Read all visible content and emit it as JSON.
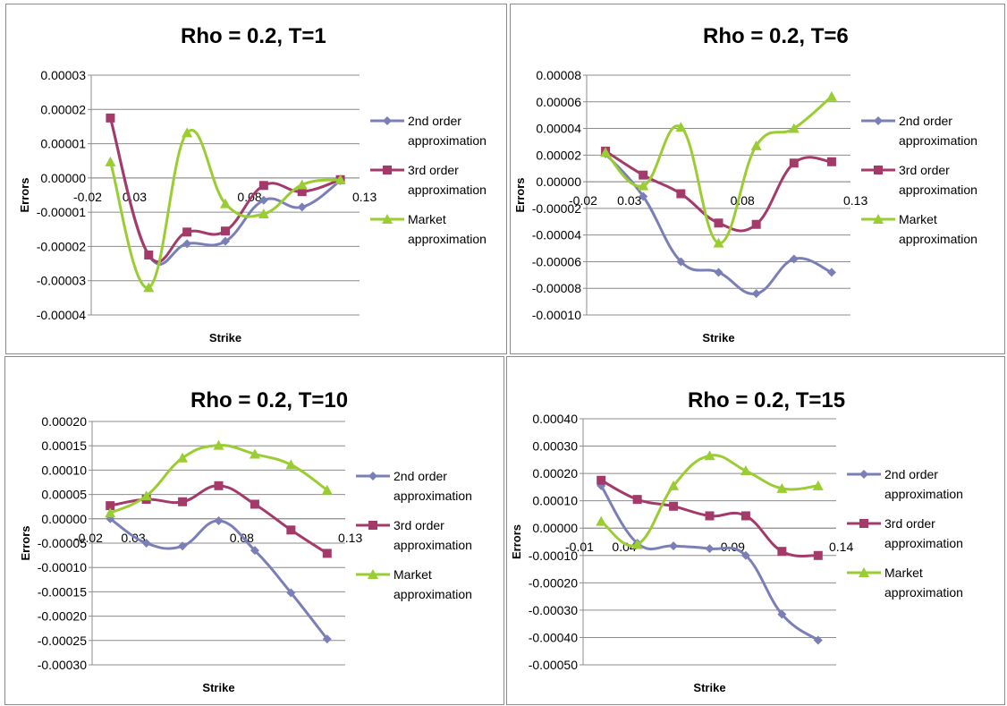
{
  "legend_labels": {
    "second": [
      "2nd order",
      "approximation"
    ],
    "third": [
      "3rd order",
      "approximation"
    ],
    "market": [
      "Market",
      "approximation"
    ]
  },
  "colors": {
    "second": "#7b7fb8",
    "third": "#a33a6a",
    "market": "#9acd32"
  },
  "chart_data": [
    {
      "type": "line",
      "title": "Rho = 0.2, T=1",
      "xlabel": "Strike",
      "ylabel": "Errors",
      "ylim": [
        -4e-05,
        3e-05
      ],
      "ytick_labels": [
        "0.00003",
        "0.00002",
        "0.00001",
        "0.00000",
        "-0.00001",
        "-0.00002",
        "-0.00003",
        "-0.00004"
      ],
      "x_category_labels": [
        "0.03",
        "0.08",
        "0.13"
      ],
      "x_origin_label": "-0.02",
      "legend_position": "right",
      "series": [
        {
          "name": "2nd order approximation",
          "values": [
            1.75e-05,
            -2.25e-05,
            -1.92e-05,
            -1.85e-05,
            -6.5e-06,
            -8.5e-06,
            -8e-07
          ]
        },
        {
          "name": "3rd order approximation",
          "values": [
            1.75e-05,
            -2.25e-05,
            -1.58e-05,
            -1.55e-05,
            -2.2e-06,
            -4e-06,
            -5e-07
          ]
        },
        {
          "name": "Market approximation",
          "values": [
            4.7e-06,
            -3.2e-05,
            1.32e-05,
            -7.5e-06,
            -1.05e-05,
            -2e-06,
            -5e-07
          ]
        }
      ]
    },
    {
      "type": "line",
      "title": "Rho = 0.2, T=6",
      "xlabel": "Strike",
      "ylabel": "Errors",
      "ylim": [
        -0.0001,
        8e-05
      ],
      "ytick_labels": [
        "0.00008",
        "0.00006",
        "0.00004",
        "0.00002",
        "0.00000",
        "-0.00002",
        "-0.00004",
        "-0.00006",
        "-0.00008",
        "-0.00010"
      ],
      "x_category_labels": [
        "0.03",
        "0.08",
        "0.13"
      ],
      "x_origin_label": "-0.02",
      "legend_position": "right",
      "series": [
        {
          "name": "2nd order approximation",
          "values": [
            2.1e-05,
            -1.1e-05,
            -6e-05,
            -6.8e-05,
            -8.4e-05,
            -5.8e-05,
            -6.8e-05
          ]
        },
        {
          "name": "3rd order approximation",
          "values": [
            2.3e-05,
            5e-06,
            -9e-06,
            -3.1e-05,
            -3.2e-05,
            1.4e-05,
            1.5e-05
          ]
        },
        {
          "name": "Market approximation",
          "values": [
            2.2e-05,
            -3e-06,
            4.1e-05,
            -4.6e-05,
            2.7e-05,
            4e-05,
            6.4e-05
          ]
        }
      ]
    },
    {
      "type": "line",
      "title": "Rho = 0.2, T=10",
      "xlabel": "Strike",
      "ylabel": "Errors",
      "ylim": [
        -0.0003,
        0.0002
      ],
      "ytick_labels": [
        "0.00020",
        "0.00015",
        "0.00010",
        "0.00005",
        "0.00000",
        "-0.00005",
        "-0.00010",
        "-0.00015",
        "-0.00020",
        "-0.00025",
        "-0.00030"
      ],
      "x_category_labels": [
        "0.03",
        "0.08",
        "0.13"
      ],
      "x_origin_label": "-0.02",
      "legend_position": "right",
      "series": [
        {
          "name": "2nd order approximation",
          "values": [
            0.0,
            -5e-05,
            -5.6e-05,
            -4e-06,
            -6.5e-05,
            -0.000152,
            -0.000247
          ]
        },
        {
          "name": "3rd order approximation",
          "values": [
            2.7e-05,
            4e-05,
            3.5e-05,
            6.8e-05,
            3e-05,
            -2.3e-05,
            -7.1e-05
          ]
        },
        {
          "name": "Market approximation",
          "values": [
            1.2e-05,
            4.7e-05,
            0.000125,
            0.000151,
            0.000133,
            0.000111,
            5.9e-05
          ]
        }
      ]
    },
    {
      "type": "line",
      "title": "Rho = 0.2, T=15",
      "xlabel": "Strike",
      "ylabel": "Errors",
      "ylim": [
        -0.0005,
        0.0004
      ],
      "ytick_labels": [
        "0.00040",
        "0.00030",
        "0.00020",
        "0.00010",
        "0.00000",
        "-0.00010",
        "-0.00020",
        "-0.00030",
        "-0.00040",
        "-0.00050"
      ],
      "x_category_labels": [
        "0.04",
        "0.09",
        "0.14"
      ],
      "x_origin_label": "-0.01",
      "legend_position": "right",
      "series": [
        {
          "name": "2nd order approximation",
          "values": [
            0.000155,
            -5.5e-05,
            -6.5e-05,
            -7.5e-05,
            -0.0001,
            -0.000315,
            -0.00041
          ]
        },
        {
          "name": "3rd order approximation",
          "values": [
            0.000175,
            0.000105,
            8e-05,
            4.5e-05,
            4.5e-05,
            -8.5e-05,
            -0.0001
          ]
        },
        {
          "name": "Market approximation",
          "values": [
            2.5e-05,
            -6e-05,
            0.000155,
            0.000265,
            0.00021,
            0.000145,
            0.000155
          ]
        }
      ]
    }
  ]
}
